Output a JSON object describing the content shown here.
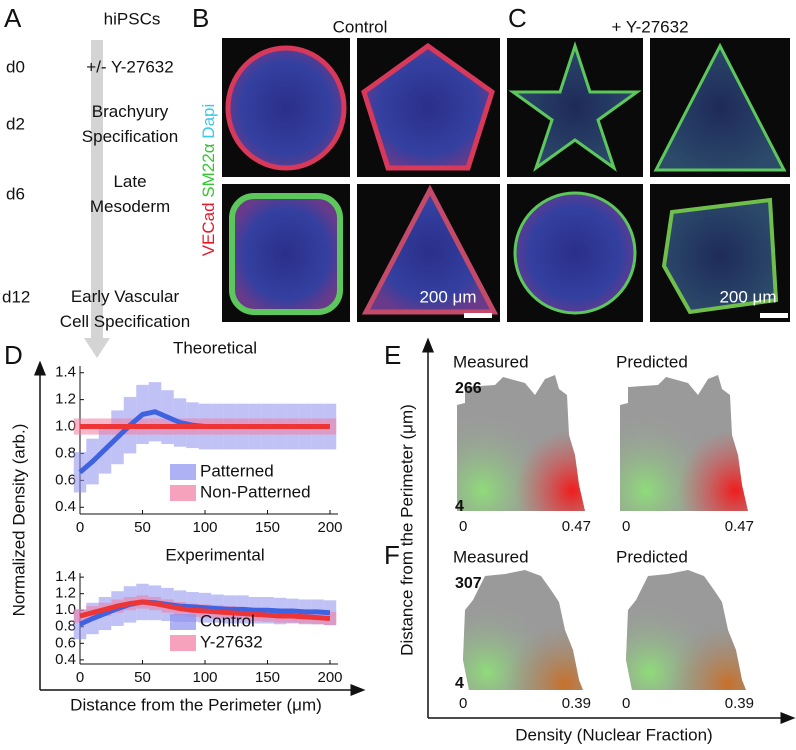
{
  "panel_a": {
    "letter": "A",
    "header": "hiPSCs",
    "steps": [
      {
        "day": "d0",
        "lines": [
          "+/- Y-27632"
        ]
      },
      {
        "day": "d2",
        "lines": [
          "Brachyury",
          "Specification"
        ]
      },
      {
        "day": "d6",
        "lines": [
          "Late",
          "Mesoderm"
        ]
      },
      {
        "day": "d12",
        "lines": [
          "Early Vascular",
          "Cell Specification"
        ]
      }
    ]
  },
  "panel_b": {
    "letter": "B",
    "title": "Control",
    "stains": [
      "VECad",
      "SM22α",
      "Dapi"
    ],
    "scale_bar": "200 μm"
  },
  "panel_c": {
    "letter": "C",
    "title": "+ Y-27632",
    "scale_bar": "200 μm"
  },
  "panel_d": {
    "letter": "D",
    "y_label": "Normalized Density (arb.)",
    "x_label": "Distance from the Perimeter (μm)"
  },
  "chart_data": [
    {
      "type": "line",
      "title": "Theoretical",
      "x": [
        0,
        10,
        20,
        30,
        40,
        50,
        60,
        70,
        80,
        90,
        100,
        110,
        120,
        130,
        140,
        150,
        160,
        170,
        180,
        190,
        200
      ],
      "xlim": [
        0,
        200
      ],
      "xticks": [
        0,
        50,
        100,
        150,
        200
      ],
      "ylim": [
        0.35,
        1.45
      ],
      "yticks": [
        0.4,
        0.6,
        0.8,
        {
          "value": 1,
          "label": "1.0"
        },
        1.2,
        1.4
      ],
      "legend": "lower right",
      "series": [
        {
          "name": "Patterned",
          "color": "#3f63e0",
          "band_color": "#8c90ee",
          "values": [
            0.66,
            0.74,
            0.83,
            0.92,
            1.01,
            1.09,
            1.11,
            1.07,
            1.03,
            1.01,
            1.0,
            1.0,
            1.0,
            1.0,
            1.0,
            1.0,
            1.0,
            1.0,
            1.0,
            1.0,
            1.0
          ],
          "errors": [
            0.15,
            0.17,
            0.18,
            0.2,
            0.21,
            0.22,
            0.22,
            0.2,
            0.18,
            0.17,
            0.17,
            0.17,
            0.17,
            0.17,
            0.17,
            0.17,
            0.17,
            0.17,
            0.17,
            0.17,
            0.17
          ]
        },
        {
          "name": "Non-Patterned",
          "color": "#ee3535",
          "band_color": "#f27aa0",
          "values": [
            1.0,
            1.0,
            1.0,
            1.0,
            1.0,
            1.0,
            1.0,
            1.0,
            1.0,
            1.0,
            1.0,
            1.0,
            1.0,
            1.0,
            1.0,
            1.0,
            1.0,
            1.0,
            1.0,
            1.0,
            1.0
          ],
          "errors": [
            0.06,
            0.06,
            0.06,
            0.06,
            0.06,
            0.06,
            0.06,
            0.06,
            0.06,
            0.06,
            0.06,
            0.06,
            0.06,
            0.06,
            0.06,
            0.06,
            0.06,
            0.06,
            0.06,
            0.06,
            0.06
          ]
        }
      ]
    },
    {
      "type": "line",
      "title": "Experimental",
      "x": [
        0,
        10,
        20,
        30,
        40,
        50,
        60,
        70,
        80,
        90,
        100,
        110,
        120,
        130,
        140,
        150,
        160,
        170,
        180,
        190,
        200
      ],
      "xlim": [
        0,
        200
      ],
      "xticks": [
        0,
        50,
        100,
        150,
        200
      ],
      "ylim": [
        0.35,
        1.45
      ],
      "yticks": [
        0.4,
        0.6,
        0.8,
        {
          "value": 1,
          "label": "1.0"
        },
        1.2,
        1.4
      ],
      "legend": "lower right",
      "series": [
        {
          "name": "Control",
          "color": "#3f63e0",
          "band_color": "#8c90ee",
          "values": [
            0.83,
            0.9,
            0.96,
            1.02,
            1.07,
            1.1,
            1.09,
            1.07,
            1.05,
            1.04,
            1.03,
            1.02,
            1.01,
            1.01,
            1.0,
            1.0,
            0.99,
            0.99,
            0.98,
            0.98,
            0.97
          ],
          "errors": [
            0.18,
            0.19,
            0.2,
            0.21,
            0.22,
            0.22,
            0.21,
            0.2,
            0.19,
            0.18,
            0.18,
            0.17,
            0.17,
            0.17,
            0.16,
            0.16,
            0.16,
            0.15,
            0.15,
            0.15,
            0.15
          ]
        },
        {
          "name": "Y-27632",
          "color": "#ee3535",
          "band_color": "#f27aa0",
          "values": [
            0.93,
            0.97,
            1.01,
            1.05,
            1.08,
            1.1,
            1.08,
            1.05,
            1.02,
            1.0,
            0.99,
            0.98,
            0.97,
            0.96,
            0.95,
            0.94,
            0.93,
            0.93,
            0.92,
            0.91,
            0.9
          ],
          "errors": [
            0.08,
            0.08,
            0.08,
            0.08,
            0.08,
            0.08,
            0.08,
            0.08,
            0.08,
            0.08,
            0.08,
            0.08,
            0.08,
            0.08,
            0.08,
            0.08,
            0.08,
            0.08,
            0.08,
            0.08,
            0.08
          ]
        }
      ]
    }
  ],
  "panel_e": {
    "letter": "E",
    "titles": [
      "Measured",
      "Predicted"
    ],
    "y_max": 266,
    "y_min": 4,
    "x_min": 0,
    "x_max": 0.47
  },
  "panel_f": {
    "letter": "F",
    "titles": [
      "Measured",
      "Predicted"
    ],
    "y_max": 307,
    "y_min": 4,
    "x_min": 0,
    "x_max": 0.39
  },
  "panel_ef": {
    "y_label": "Distance from the Perimeter (μm)",
    "x_label": "Density (Nuclear Fraction)"
  }
}
